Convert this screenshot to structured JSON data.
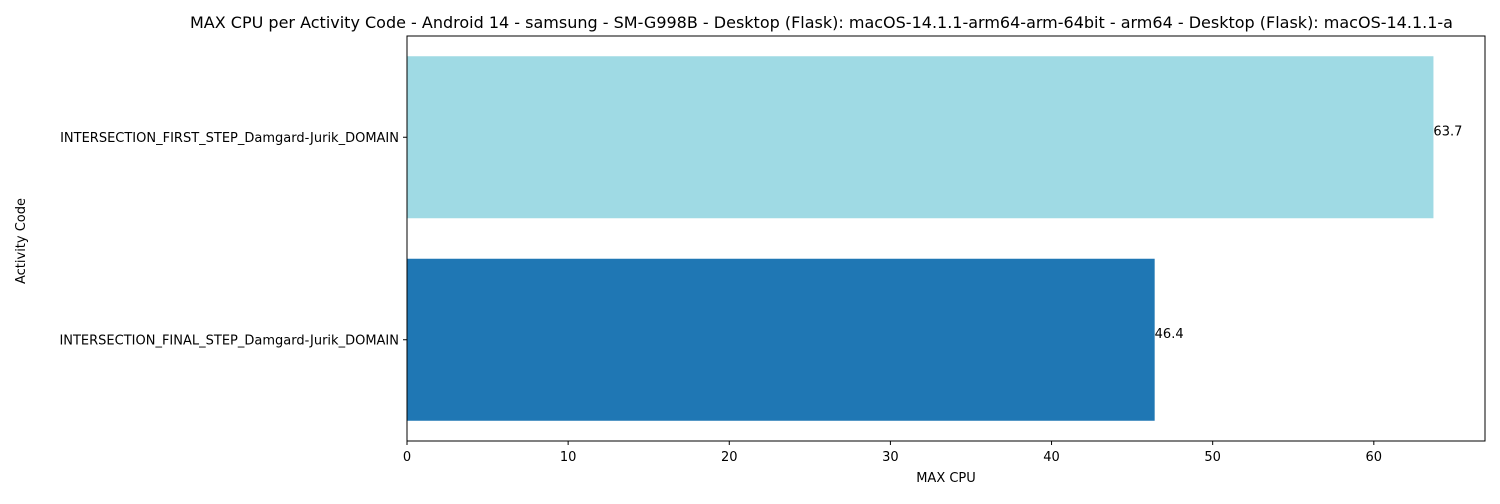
{
  "chart_data": {
    "type": "bar",
    "orientation": "horizontal",
    "title": "MAX CPU per Activity Code - Android 14 - samsung - SM-G998B - Desktop (Flask): macOS-14.1.1-arm64-arm-64bit - arm64 - Desktop (Flask): macOS-14.1.1-a",
    "xlabel": "MAX CPU",
    "ylabel": "Activity Code",
    "categories": [
      "INTERSECTION_FIRST_STEP_Damgard-Jurik_DOMAIN",
      "INTERSECTION_FINAL_STEP_Damgard-Jurik_DOMAIN"
    ],
    "values": [
      63.7,
      46.4
    ],
    "value_labels": [
      "63.7",
      "46.4"
    ],
    "bar_colors": [
      "#9fdae4",
      "#1f77b4"
    ],
    "xlim": [
      0,
      66.9
    ],
    "xticks": [
      0,
      10,
      20,
      30,
      40,
      50,
      60
    ],
    "xtick_labels": [
      "0",
      "10",
      "20",
      "30",
      "40",
      "50",
      "60"
    ],
    "grid": false,
    "legend": "none"
  }
}
